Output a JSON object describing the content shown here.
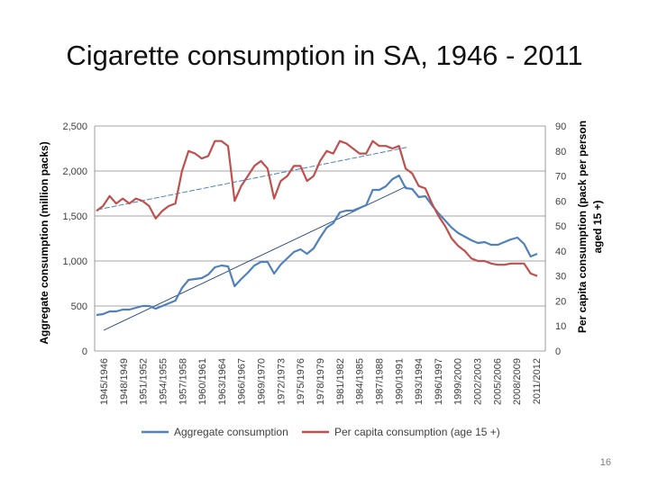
{
  "slide": {
    "title": "Cigarette consumption in SA, 1946 - 2011",
    "page_number": "16"
  },
  "chart_data": {
    "type": "line",
    "title": "Cigarette consumption in SA, 1946 - 2011",
    "ylabel_left": "Aggregate consumption (million packs)",
    "ylabel_right": "Per capita consumption (pack per person aged 15 +)",
    "ylim_left": [
      0,
      2500
    ],
    "ylim_right": [
      0,
      90
    ],
    "y_ticks_left": [
      "0",
      "500",
      "1,000",
      "1,500",
      "2,000",
      "2,500"
    ],
    "y_ticks_right": [
      "0",
      "10",
      "20",
      "30",
      "40",
      "50",
      "60",
      "70",
      "80",
      "90"
    ],
    "x_labels": [
      "1945/1946",
      "1948/1949",
      "1951/1952",
      "1954/1955",
      "1957/1958",
      "1960/1961",
      "1963/1964",
      "1966/1967",
      "1969/1970",
      "1972/1973",
      "1975/1976",
      "1978/1979",
      "1981/1982",
      "1984/1985",
      "1987/1988",
      "1990/1991",
      "1993/1994",
      "1996/1997",
      "1999/2000",
      "2002/2003",
      "2005/2006",
      "2008/2009",
      "2011/2012"
    ],
    "grid": true,
    "legend_position": "bottom",
    "series": [
      {
        "name": "Aggregate consumption",
        "axis": "left",
        "color": "#4f81bd",
        "values": [
          400,
          410,
          440,
          440,
          460,
          460,
          480,
          500,
          500,
          470,
          500,
          530,
          560,
          700,
          790,
          800,
          810,
          850,
          930,
          950,
          940,
          720,
          800,
          870,
          950,
          990,
          990,
          860,
          960,
          1030,
          1100,
          1130,
          1080,
          1140,
          1260,
          1370,
          1420,
          1540,
          1560,
          1560,
          1590,
          1620,
          1790,
          1790,
          1830,
          1910,
          1950,
          1810,
          1800,
          1710,
          1720,
          1620,
          1530,
          1450,
          1370,
          1310,
          1270,
          1230,
          1200,
          1210,
          1180,
          1180,
          1210,
          1240,
          1260,
          1190,
          1050,
          1080
        ]
      },
      {
        "name": "Per capita consumption (age 15 +)",
        "axis": "right",
        "color": "#c0504d",
        "values": [
          56,
          58,
          62,
          59,
          61,
          59,
          61,
          60,
          58,
          53,
          56,
          58,
          59,
          72,
          80,
          79,
          77,
          78,
          84,
          84,
          82,
          60,
          66,
          70,
          74,
          76,
          73,
          61,
          68,
          70,
          74,
          74,
          68,
          70,
          76,
          80,
          79,
          84,
          83,
          81,
          79,
          79,
          84,
          82,
          82,
          81,
          82,
          73,
          71,
          66,
          65,
          59,
          54,
          50,
          45,
          42,
          40,
          37,
          36,
          36,
          35,
          34.5,
          34.5,
          35,
          35,
          35,
          31,
          30
        ]
      },
      {
        "name": "",
        "axis": "right",
        "style": "trend",
        "color": "#4f81bd",
        "values_endpoints": [
          56.5,
          81.5
        ]
      },
      {
        "name": "",
        "axis": "left",
        "style": "trend",
        "color": "#1f3f7a",
        "values_endpoints": [
          230,
          1830
        ]
      }
    ]
  }
}
